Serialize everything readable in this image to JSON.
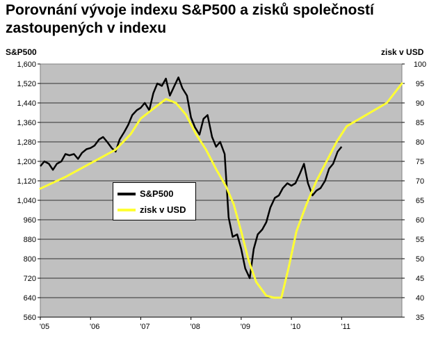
{
  "chart_data": {
    "type": "line",
    "title_line1": "Porovnání vývoje indexu S&P500 a zisků společností",
    "title_line2": "zastoupených v indexu",
    "ylabel_left": "S&P500",
    "ylabel_right": "zisk v USD",
    "x_ticks": [
      "'05",
      "'06",
      "'07",
      "'08",
      "'09",
      "'10",
      "'11"
    ],
    "y_left_ticks": [
      "1,600",
      "1,520",
      "1,440",
      "1,360",
      "1,280",
      "1,200",
      "1,120",
      "1,040",
      "960",
      "880",
      "800",
      "720",
      "640",
      "560"
    ],
    "y_right_ticks": [
      "100",
      "95",
      "90",
      "85",
      "80",
      "75",
      "70",
      "65",
      "60",
      "55",
      "50",
      "45",
      "40",
      "35"
    ],
    "xlim": [
      2005.0,
      2012.2
    ],
    "ylim_left": [
      560,
      1600
    ],
    "ylim_right": [
      35,
      100
    ],
    "grid": "horizontal",
    "legend_position": "left-middle",
    "series": [
      {
        "name": "S&P500",
        "axis": "left",
        "color": "#000000",
        "x": [
          2005.0,
          2005.08,
          2005.17,
          2005.25,
          2005.33,
          2005.42,
          2005.5,
          2005.58,
          2005.67,
          2005.75,
          2005.83,
          2005.92,
          2006.0,
          2006.08,
          2006.17,
          2006.25,
          2006.33,
          2006.42,
          2006.5,
          2006.58,
          2006.67,
          2006.75,
          2006.83,
          2006.92,
          2007.0,
          2007.08,
          2007.17,
          2007.25,
          2007.33,
          2007.42,
          2007.5,
          2007.58,
          2007.67,
          2007.75,
          2007.83,
          2007.92,
          2008.0,
          2008.08,
          2008.17,
          2008.25,
          2008.33,
          2008.42,
          2008.5,
          2008.58,
          2008.67,
          2008.75,
          2008.83,
          2008.92,
          2009.0,
          2009.08,
          2009.17,
          2009.25,
          2009.33,
          2009.42,
          2009.5,
          2009.58,
          2009.67,
          2009.75,
          2009.83,
          2009.92,
          2010.0,
          2010.08,
          2010.17,
          2010.25,
          2010.33,
          2010.42,
          2010.5,
          2010.58,
          2010.67,
          2010.75,
          2010.83,
          2010.92,
          2011.0
        ],
        "values": [
          1180,
          1200,
          1190,
          1165,
          1190,
          1200,
          1230,
          1225,
          1230,
          1210,
          1235,
          1250,
          1255,
          1265,
          1290,
          1300,
          1280,
          1255,
          1240,
          1290,
          1320,
          1350,
          1390,
          1410,
          1420,
          1440,
          1410,
          1480,
          1520,
          1510,
          1540,
          1470,
          1510,
          1545,
          1500,
          1470,
          1380,
          1340,
          1310,
          1375,
          1390,
          1300,
          1260,
          1280,
          1230,
          970,
          890,
          900,
          840,
          760,
          720,
          840,
          900,
          920,
          950,
          1010,
          1050,
          1060,
          1090,
          1110,
          1100,
          1110,
          1150,
          1190,
          1110,
          1060,
          1080,
          1090,
          1120,
          1170,
          1190,
          1240,
          1260
        ]
      },
      {
        "name": "zisk v USD",
        "axis": "right",
        "color": "#ffff33",
        "x": [
          2005.0,
          2005.5,
          2006.0,
          2006.5,
          2006.8,
          2007.0,
          2007.3,
          2007.5,
          2007.7,
          2007.9,
          2008.1,
          2008.3,
          2008.5,
          2008.7,
          2008.85,
          2009.0,
          2009.15,
          2009.3,
          2009.5,
          2009.65,
          2009.8,
          2009.95,
          2010.1,
          2010.3,
          2010.5,
          2010.7,
          2010.9,
          2011.1,
          2011.5,
          2011.9,
          2012.2
        ],
        "values": [
          68,
          71,
          74.5,
          78,
          82,
          86,
          89,
          91,
          90,
          87,
          82,
          78,
          73,
          68.5,
          64,
          57,
          49.5,
          44,
          40.5,
          40,
          40,
          48,
          57,
          64,
          70,
          75,
          80,
          84,
          87,
          90,
          95
        ]
      }
    ]
  }
}
